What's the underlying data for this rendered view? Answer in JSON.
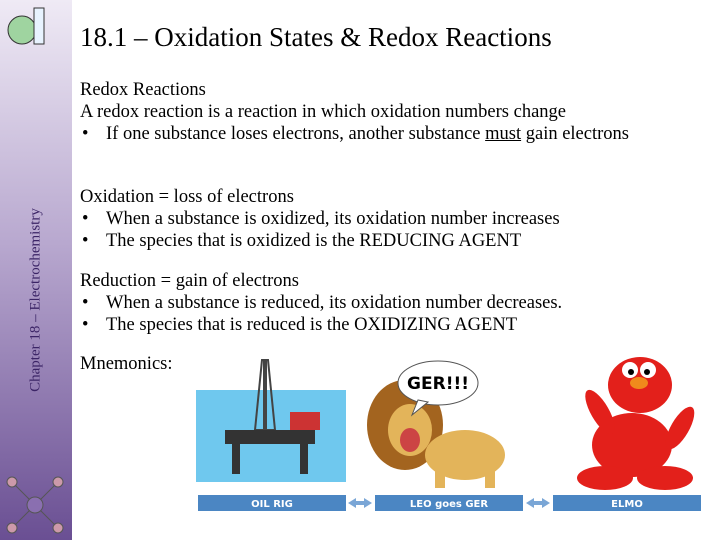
{
  "sidebar": "Chapter 18 – Electrochemistry",
  "title": "18.1 – Oxidation States & Redox Reactions",
  "sections": [
    {
      "heading": "Redox Reactions",
      "intro": "A redox reaction is a reaction in which oxidation numbers change",
      "bullets": [
        [
          "If one substance loses electrons, another substance ",
          "must",
          " gain electrons"
        ]
      ]
    },
    {
      "heading": "Oxidation = loss of electrons",
      "bullets": [
        [
          "When a substance is oxidized, its oxidation number increases"
        ],
        [
          "The species that is oxidized is the REDUCING AGENT"
        ]
      ]
    },
    {
      "heading": "Reduction = gain of electrons",
      "bullets": [
        [
          "When a substance is reduced, its oxidation number decreases."
        ],
        [
          "The species that is reduced is the OXIDIZING AGENT"
        ]
      ]
    }
  ],
  "mnemonics": "Mnemonics:",
  "speech": "GER!!!",
  "labels": [
    "OIL RIG",
    "LEO goes GER",
    "ELMO"
  ]
}
